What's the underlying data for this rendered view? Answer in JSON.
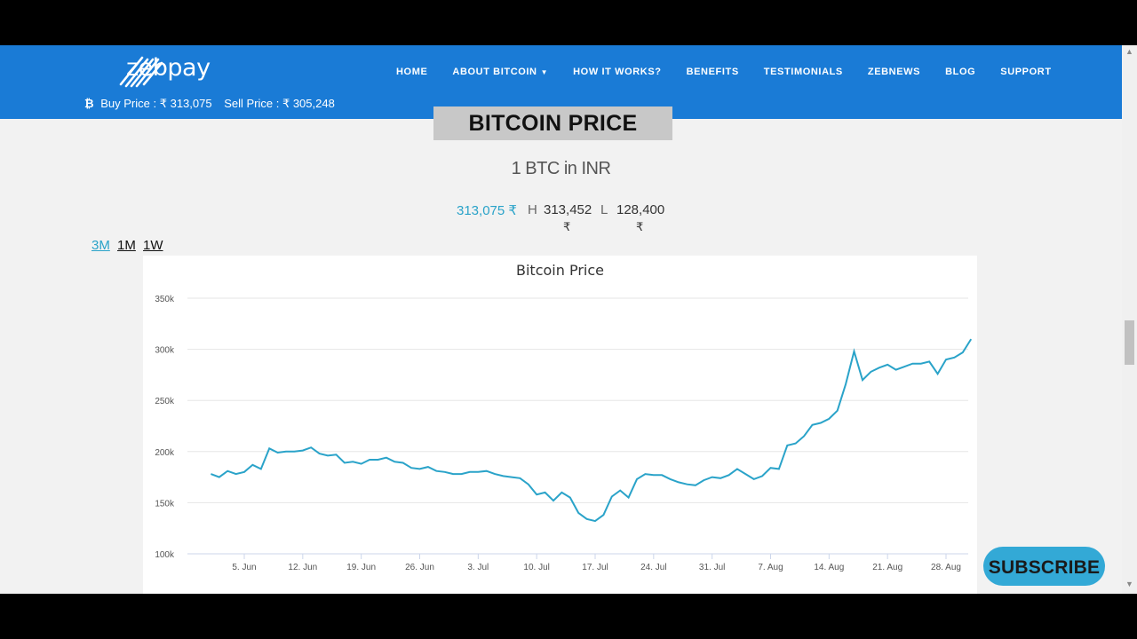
{
  "header": {
    "logo_text": "zebpay",
    "nav": [
      "HOME",
      "ABOUT BITCOIN",
      "HOW IT WORKS?",
      "BENEFITS",
      "TESTIMONIALS",
      "ZEBNEWS",
      "BLOG",
      "SUPPORT"
    ],
    "buy_price": "Buy Price : ₹ 313,075",
    "sell_price": "Sell Price : ₹ 305,248"
  },
  "title": "BITCOIN PRICE",
  "subtitle": "1 BTC in INR",
  "stats": {
    "current": "313,075 ₹",
    "h_label": "H",
    "high": "313,452",
    "high_unit": "₹",
    "l_label": "L",
    "low": "128,400",
    "low_unit": "₹"
  },
  "ranges": [
    "3M",
    "1M",
    "1W"
  ],
  "subscribe": "SUBSCRIBE",
  "colors": {
    "header": "#1a7bd6",
    "line": "#2aa3c9",
    "accent": "#2aa3c9"
  },
  "chart_data": {
    "type": "line",
    "title": "Bitcoin Price",
    "ylim": [
      100000,
      350000
    ],
    "yticks": [
      "100k",
      "150k",
      "200k",
      "250k",
      "300k",
      "350k"
    ],
    "xticks": [
      "5. Jun",
      "12. Jun",
      "19. Jun",
      "26. Jun",
      "3. Jul",
      "10. Jul",
      "17. Jul",
      "24. Jul",
      "31. Jul",
      "7. Aug",
      "14. Aug",
      "21. Aug",
      "28. Aug"
    ],
    "grid": true,
    "series": [
      {
        "x": [
          "2017-06-01",
          "2017-06-02",
          "2017-06-03",
          "2017-06-04",
          "2017-06-05",
          "2017-06-06",
          "2017-06-07",
          "2017-06-08",
          "2017-06-09",
          "2017-06-10",
          "2017-06-11",
          "2017-06-12",
          "2017-06-13",
          "2017-06-14",
          "2017-06-15",
          "2017-06-16",
          "2017-06-17",
          "2017-06-18",
          "2017-06-19",
          "2017-06-20",
          "2017-06-21",
          "2017-06-22",
          "2017-06-23",
          "2017-06-24",
          "2017-06-25",
          "2017-06-26",
          "2017-06-27",
          "2017-06-28",
          "2017-06-29",
          "2017-06-30",
          "2017-07-01",
          "2017-07-02",
          "2017-07-03",
          "2017-07-04",
          "2017-07-05",
          "2017-07-06",
          "2017-07-07",
          "2017-07-08",
          "2017-07-09",
          "2017-07-10",
          "2017-07-11",
          "2017-07-12",
          "2017-07-13",
          "2017-07-14",
          "2017-07-15",
          "2017-07-16",
          "2017-07-17",
          "2017-07-18",
          "2017-07-19",
          "2017-07-20",
          "2017-07-21",
          "2017-07-22",
          "2017-07-23",
          "2017-07-24",
          "2017-07-25",
          "2017-07-26",
          "2017-07-27",
          "2017-07-28",
          "2017-07-29",
          "2017-07-30",
          "2017-07-31",
          "2017-08-01",
          "2017-08-02",
          "2017-08-03",
          "2017-08-04",
          "2017-08-05",
          "2017-08-06",
          "2017-08-07",
          "2017-08-08",
          "2017-08-09",
          "2017-08-10",
          "2017-08-11",
          "2017-08-12",
          "2017-08-13",
          "2017-08-14",
          "2017-08-15",
          "2017-08-16",
          "2017-08-17",
          "2017-08-18",
          "2017-08-19",
          "2017-08-20",
          "2017-08-21",
          "2017-08-22",
          "2017-08-23",
          "2017-08-24",
          "2017-08-25",
          "2017-08-26",
          "2017-08-27",
          "2017-08-28",
          "2017-08-29",
          "2017-08-30",
          "2017-08-31"
        ],
        "y": [
          178000,
          175000,
          181000,
          178000,
          180000,
          187000,
          183000,
          203000,
          199000,
          200000,
          200000,
          201000,
          204000,
          198000,
          196000,
          197000,
          189000,
          190000,
          188000,
          192000,
          192000,
          194000,
          190000,
          189000,
          184000,
          183000,
          185000,
          181000,
          180000,
          178000,
          178000,
          180000,
          180000,
          181000,
          178000,
          176000,
          175000,
          174000,
          168000,
          158000,
          160000,
          152000,
          160000,
          155000,
          140000,
          134000,
          132000,
          138000,
          156000,
          162000,
          155000,
          173000,
          178000,
          177000,
          177000,
          173000,
          170000,
          168000,
          167000,
          172000,
          175000,
          174000,
          177000,
          183000,
          178000,
          173000,
          176000,
          184000,
          183000,
          206000,
          208000,
          215000,
          226000,
          228000,
          232000,
          240000,
          266000,
          298000,
          270000,
          278000,
          282000,
          285000,
          280000,
          283000,
          286000,
          286000,
          288000,
          276000,
          290000,
          292000,
          297000,
          310000
        ]
      }
    ]
  }
}
